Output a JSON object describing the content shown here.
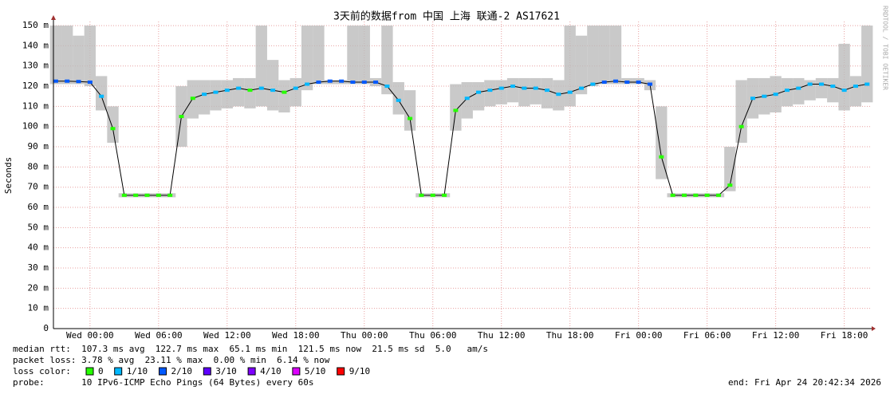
{
  "chart_data": {
    "type": "smokeping",
    "title": "3天前的数据from 中国 上海 联通-2 AS17621",
    "y_label": "Seconds",
    "side_label": "RRDTOOL / TOBI OETIKER",
    "xlim": [
      -3.2,
      68.4
    ],
    "xticks": [
      {
        "value": 0,
        "label": "Wed 00:00"
      },
      {
        "value": 6,
        "label": "Wed 06:00"
      },
      {
        "value": 12,
        "label": "Wed 12:00"
      },
      {
        "value": 18,
        "label": "Wed 18:00"
      },
      {
        "value": 24,
        "label": "Thu 00:00"
      },
      {
        "value": 30,
        "label": "Thu 06:00"
      },
      {
        "value": 36,
        "label": "Thu 12:00"
      },
      {
        "value": 42,
        "label": "Thu 18:00"
      },
      {
        "value": 48,
        "label": "Fri 00:00"
      },
      {
        "value": 54,
        "label": "Fri 06:00"
      },
      {
        "value": 60,
        "label": "Fri 12:00"
      },
      {
        "value": 66,
        "label": "Fri 18:00"
      }
    ],
    "ylim": [
      0,
      152
    ],
    "yticks": [
      0,
      {
        "value": 10,
        "label": "10 m"
      },
      {
        "value": 20,
        "label": "20 m"
      },
      {
        "value": 30,
        "label": "30 m"
      },
      {
        "value": 40,
        "label": "40 m"
      },
      {
        "value": 50,
        "label": "50 m"
      },
      {
        "value": 60,
        "label": "60 m"
      },
      {
        "value": 70,
        "label": "70 m"
      },
      {
        "value": 80,
        "label": "80 m"
      },
      {
        "value": 90,
        "label": "90 m"
      },
      {
        "value": 100,
        "label": "100 m"
      },
      {
        "value": 110,
        "label": "110 m"
      },
      {
        "value": 120,
        "label": "120 m"
      },
      {
        "value": 130,
        "label": "130 m"
      },
      {
        "value": 140,
        "label": "140 m"
      },
      {
        "value": 150,
        "label": "150 m"
      }
    ],
    "grid": true,
    "x": [
      -3,
      -2,
      -1,
      0,
      1,
      2,
      3,
      4,
      5,
      6,
      7,
      8,
      9,
      10,
      11,
      12,
      13,
      14,
      15,
      16,
      17,
      18,
      19,
      20,
      21,
      22,
      23,
      24,
      25,
      26,
      27,
      28,
      29,
      30,
      31,
      32,
      33,
      34,
      35,
      36,
      37,
      38,
      39,
      40,
      41,
      42,
      43,
      44,
      45,
      46,
      47,
      48,
      49,
      50,
      51,
      52,
      53,
      54,
      55,
      56,
      57,
      58,
      59,
      60,
      61,
      62,
      63,
      64,
      65,
      66,
      67,
      68
    ],
    "median": [
      122.5,
      122.5,
      122.3,
      122,
      115,
      99,
      66,
      66,
      66,
      66,
      66,
      105,
      114,
      116,
      117,
      118,
      119,
      118,
      119,
      118,
      117,
      119,
      121,
      122,
      122.5,
      122.5,
      122,
      122,
      122,
      120,
      113,
      104,
      66,
      66,
      66,
      108,
      114,
      117,
      118,
      119,
      120,
      119,
      119,
      118,
      116,
      117,
      119,
      121,
      122,
      122.5,
      122,
      122,
      121,
      85,
      66,
      66,
      66,
      66,
      66,
      71,
      100,
      114,
      115,
      116,
      118,
      119,
      121,
      121,
      120,
      118,
      120,
      121
    ],
    "low": [
      121,
      121,
      121,
      120,
      108,
      92,
      65,
      65,
      65,
      65,
      65,
      90,
      104,
      106,
      108,
      109,
      110,
      109,
      110,
      108,
      107,
      110,
      118,
      121,
      121,
      121,
      121,
      121,
      120,
      116,
      106,
      98,
      65,
      65,
      65,
      98,
      104,
      108,
      110,
      111,
      112,
      110,
      111,
      109,
      108,
      110,
      116,
      120,
      121,
      121,
      121,
      121,
      118,
      74,
      65,
      65,
      65,
      65,
      65,
      68,
      92,
      104,
      106,
      107,
      110,
      111,
      113,
      114,
      112,
      108,
      110,
      112
    ],
    "high": [
      150,
      150,
      145,
      150,
      125,
      110,
      67,
      67,
      67,
      67,
      67,
      120,
      123,
      123,
      123,
      123,
      124,
      124,
      150,
      133,
      123,
      124,
      150,
      150,
      123,
      123,
      150,
      150,
      124,
      150,
      122,
      118,
      67,
      67,
      67,
      121,
      122,
      122,
      123,
      123,
      124,
      124,
      124,
      124,
      123,
      150,
      145,
      150,
      150,
      150,
      124,
      124,
      123,
      110,
      67,
      67,
      67,
      67,
      67,
      90,
      123,
      124,
      124,
      125,
      124,
      124,
      123,
      124,
      124,
      141,
      125,
      150
    ],
    "loss_level": [
      2,
      2,
      2,
      2,
      1,
      0,
      0,
      0,
      0,
      0,
      0,
      0,
      0,
      1,
      1,
      1,
      1,
      0,
      1,
      1,
      0,
      1,
      1,
      2,
      2,
      2,
      2,
      2,
      2,
      1,
      1,
      0,
      0,
      0,
      0,
      0,
      1,
      1,
      1,
      1,
      1,
      1,
      1,
      1,
      1,
      1,
      1,
      1,
      2,
      2,
      2,
      2,
      2,
      0,
      0,
      0,
      0,
      0,
      0,
      0,
      0,
      1,
      1,
      1,
      1,
      1,
      1,
      1,
      1,
      1,
      1,
      1
    ],
    "loss_legend": [
      {
        "name": "0",
        "color": "#26ff00"
      },
      {
        "name": "1/10",
        "color": "#00b8ff"
      },
      {
        "name": "2/10",
        "color": "#0059ff"
      },
      {
        "name": "3/10",
        "color": "#5e00ff"
      },
      {
        "name": "4/10",
        "color": "#7e00ff"
      },
      {
        "name": "5/10",
        "color": "#dd00ff"
      },
      {
        "name": "9/10",
        "color": "#ff0000"
      }
    ],
    "smoke_color": "#bbbbbb",
    "line_color": "#000000"
  },
  "stats": {
    "median_rtt": "median rtt:  107.3 ms avg  122.7 ms max  65.1 ms min  121.5 ms now  21.5 ms sd  5.0   am/s",
    "packet_loss": "packet loss: 3.78 % avg  23.11 % max  0.00 % min  6.14 % now",
    "loss_color": "loss color:",
    "probe": "probe:       10 IPv6-ICMP Echo Pings (64 Bytes) every 60s",
    "end": "end: Fri Apr 24 20:42:34 2026"
  }
}
